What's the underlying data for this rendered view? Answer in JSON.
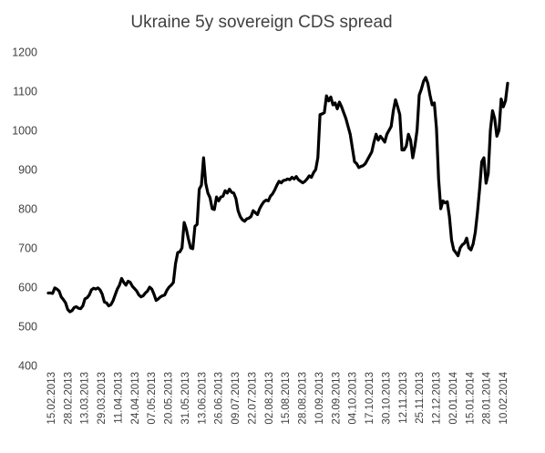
{
  "chart_data": {
    "type": "line",
    "title": "Ukraine 5y sovereign CDS spread",
    "xlabel": "",
    "ylabel": "",
    "ylim": [
      400,
      1200
    ],
    "yticks": [
      400,
      500,
      600,
      700,
      800,
      900,
      1000,
      1100,
      1200
    ],
    "grid": false,
    "legend": "none",
    "line_color": "#000000",
    "x_tick_labels": [
      "15.02.2013",
      "28.02.2013",
      "13.03.2013",
      "29.03.2013",
      "11.04.2013",
      "24.04.2013",
      "07.05.2013",
      "20.05.2013",
      "31.05.2013",
      "13.06.2013",
      "26.06.2013",
      "09.07.2013",
      "22.07.2013",
      "02.08.2013",
      "15.08.2013",
      "28.08.2013",
      "10.09.2013",
      "23.09.2013",
      "04.10.2013",
      "17.10.2013",
      "30.10.2013",
      "12.11.2013",
      "25.11.2013",
      "12.12.2013",
      "02.01.2014",
      "15.01.2014",
      "28.01.2014",
      "10.02.2014"
    ],
    "series": [
      {
        "values": [
          585,
          585,
          584,
          598,
          595,
          590,
          575,
          568,
          560,
          543,
          537,
          540,
          548,
          550,
          546,
          545,
          552,
          570,
          573,
          580,
          593,
          597,
          595,
          598,
          593,
          582,
          562,
          560,
          552,
          555,
          565,
          580,
          595,
          605,
          622,
          612,
          605,
          615,
          612,
          602,
          596,
          590,
          580,
          575,
          578,
          585,
          590,
          600,
          595,
          582,
          566,
          570,
          575,
          578,
          580,
          592,
          600,
          605,
          612,
          660,
          688,
          690,
          700,
          765,
          748,
          722,
          700,
          698,
          755,
          760,
          850,
          860,
          930,
          865,
          840,
          828,
          800,
          798,
          830,
          820,
          830,
          832,
          846,
          840,
          850,
          842,
          840,
          826,
          795,
          780,
          772,
          768,
          774,
          776,
          780,
          795,
          790,
          785,
          800,
          810,
          818,
          822,
          820,
          832,
          838,
          848,
          860,
          870,
          866,
          872,
          873,
          876,
          874,
          880,
          876,
          882,
          874,
          870,
          866,
          870,
          876,
          884,
          880,
          892,
          900,
          930,
          1040,
          1042,
          1045,
          1088,
          1075,
          1085,
          1065,
          1070,
          1055,
          1072,
          1060,
          1045,
          1030,
          1010,
          990,
          955,
          920,
          915,
          905,
          908,
          910,
          915,
          925,
          935,
          945,
          970,
          990,
          975,
          985,
          978,
          970,
          990,
          1000,
          1010,
          1050,
          1078,
          1060,
          1040,
          950,
          950,
          960,
          990,
          975,
          930,
          960,
          1000,
          1090,
          1105,
          1125,
          1135,
          1120,
          1090,
          1065,
          1070,
          1005,
          875,
          800,
          820,
          815,
          818,
          780,
          720,
          695,
          688,
          680,
          700,
          708,
          712,
          725,
          700,
          695,
          710,
          740,
          790,
          850,
          920,
          930,
          865,
          890,
          1000,
          1050,
          1030,
          985,
          1000,
          1080,
          1060,
          1075,
          1120
        ]
      }
    ]
  }
}
